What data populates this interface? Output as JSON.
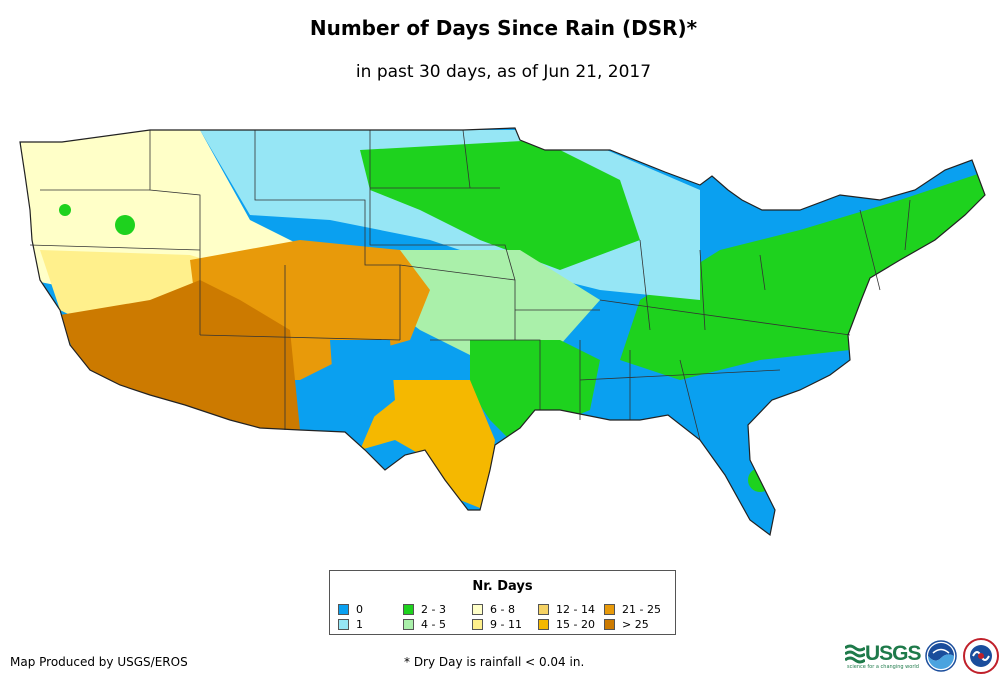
{
  "header": {
    "title": "Number of Days Since Rain (DSR)*",
    "subtitle": "in past 30 days, as of Jun 21, 2017"
  },
  "map": {
    "region": "Contiguous United States",
    "regions": [
      {
        "name": "Southwest desert",
        "category": "> 25",
        "color": "#cc7a00"
      },
      {
        "name": "Four Corners / southern Rockies",
        "category": "21 - 25",
        "color": "#e89a0a"
      },
      {
        "name": "West Texas",
        "category": "15 - 20",
        "color": "#f5b800"
      },
      {
        "name": "Great Basin / California",
        "category": "9 - 11",
        "color": "#fff08c"
      },
      {
        "name": "Northern Rockies",
        "category": "6 - 8",
        "color": "#ffffc8"
      },
      {
        "name": "Great Plains",
        "category": "4 - 5",
        "color": "#aaf0aa"
      },
      {
        "name": "Upper Midwest / Texas",
        "category": "2 - 3",
        "color": "#1ed21e"
      },
      {
        "name": "Northern Plains",
        "category": "1",
        "color": "#96e6f5"
      },
      {
        "name": "Southeast / Gulf Coast",
        "category": "0",
        "color": "#0aa0f0"
      }
    ]
  },
  "legend": {
    "title": "Nr. Days",
    "items": [
      {
        "label": "0",
        "color": "#0aa0f0"
      },
      {
        "label": "1",
        "color": "#96e6f5"
      },
      {
        "label": "2 - 3",
        "color": "#1ed21e"
      },
      {
        "label": "4 - 5",
        "color": "#aaf0aa"
      },
      {
        "label": "6 - 8",
        "color": "#ffffc8"
      },
      {
        "label": "9 - 11",
        "color": "#fff08c"
      },
      {
        "label": "12 - 14",
        "color": "#f5d264"
      },
      {
        "label": "15 - 20",
        "color": "#f5b800"
      },
      {
        "label": "21 - 25",
        "color": "#e89a0a"
      },
      {
        "label": "> 25",
        "color": "#cc7a00"
      }
    ]
  },
  "footer": {
    "credit": "Map Produced by USGS/EROS",
    "note": "* Dry Day is rainfall < 0.04 in.",
    "usgs_logo": "USGS",
    "usgs_tagline": "science for a changing world",
    "noaa_logo": "noaa-logo",
    "nws_logo": "nws-logo"
  }
}
